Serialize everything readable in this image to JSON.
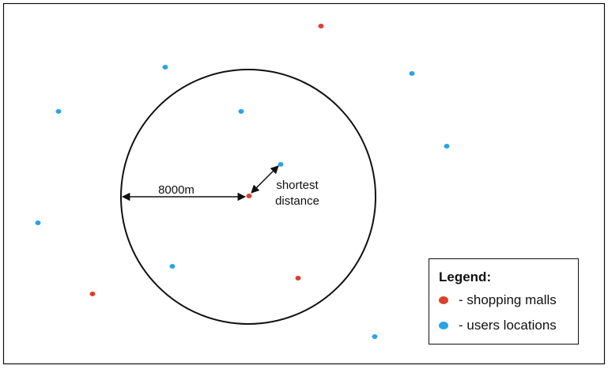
{
  "colors": {
    "mall": "#d9412e",
    "user": "#2aa3e6",
    "stroke": "#111111"
  },
  "labels": {
    "radius": "8000m",
    "shortest_line1": "shortest",
    "shortest_line2": "distance"
  },
  "legend": {
    "title": "Legend:",
    "items": [
      {
        "label": "- shopping malls",
        "kind": "mall"
      },
      {
        "label": "- users locations",
        "kind": "user"
      }
    ]
  }
}
